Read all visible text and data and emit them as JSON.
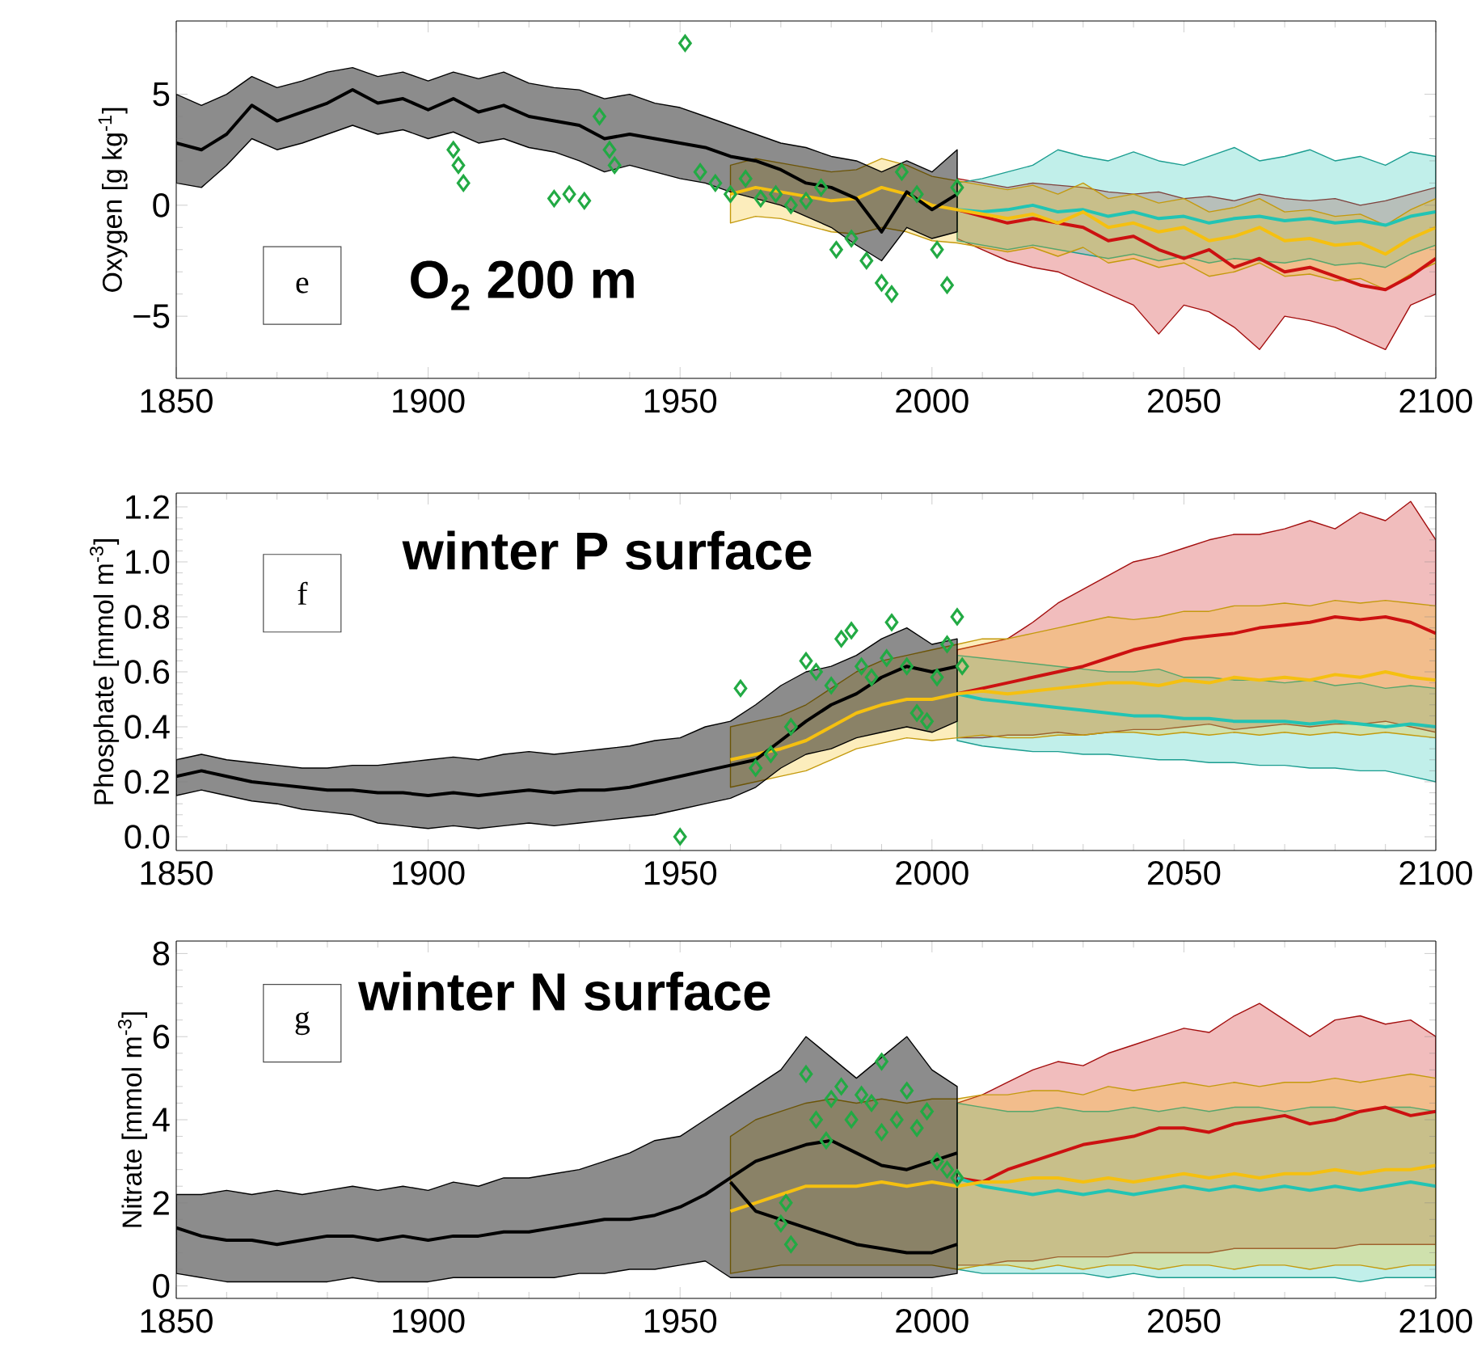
{
  "chart_data": [
    {
      "type": "line",
      "ylabel": "Oxygen [g kg$^{-1}$]",
      "annotations": [
        "e",
        "O$_{2}$ 200 m"
      ],
      "xlim": [
        1850,
        2100
      ],
      "xticks": [
        1850,
        1900,
        1950,
        2000,
        2050,
        2100
      ],
      "ylim": [
        -7.8,
        8.3
      ],
      "yticks": [
        {
          "value": -5,
          "label": "−5"
        },
        0,
        5
      ],
      "series": [
        {
          "color": "#cc1111",
          "x": [
            2005,
            2010,
            2015,
            2020,
            2025,
            2030,
            2035,
            2040,
            2045,
            2050,
            2055,
            2060,
            2065,
            2070,
            2075,
            2080,
            2085,
            2090,
            2095,
            2100
          ],
          "values": [
            -0.2,
            -0.5,
            -0.8,
            -0.6,
            -0.8,
            -1.0,
            -1.6,
            -1.4,
            -2.0,
            -2.4,
            -2.0,
            -2.8,
            -2.4,
            -3.0,
            -2.8,
            -3.2,
            -3.6,
            -3.8,
            -3.2,
            -2.4
          ],
          "lower": [
            -1.5,
            -2.0,
            -2.5,
            -2.8,
            -3.0,
            -3.5,
            -4.0,
            -4.5,
            -5.8,
            -4.5,
            -4.8,
            -5.5,
            -6.5,
            -5.0,
            -5.2,
            -5.5,
            -6.0,
            -6.5,
            -4.5,
            -4.0
          ],
          "upper": [
            1.2,
            1.0,
            0.8,
            1.0,
            0.9,
            0.8,
            0.6,
            0.5,
            0.6,
            0.3,
            0.4,
            0.2,
            0.5,
            0.3,
            0.2,
            0.3,
            0.0,
            0.2,
            0.5,
            0.8
          ]
        },
        {
          "color": "#22c4b4",
          "x": [
            2005,
            2010,
            2015,
            2020,
            2025,
            2030,
            2035,
            2040,
            2045,
            2050,
            2055,
            2060,
            2065,
            2070,
            2075,
            2080,
            2085,
            2090,
            2095,
            2100
          ],
          "values": [
            -0.2,
            -0.3,
            -0.2,
            0.0,
            -0.3,
            -0.2,
            -0.5,
            -0.3,
            -0.6,
            -0.5,
            -0.8,
            -0.6,
            -0.5,
            -0.7,
            -0.6,
            -0.8,
            -0.7,
            -0.9,
            -0.5,
            -0.3
          ],
          "lower": [
            -1.6,
            -1.8,
            -2.0,
            -1.8,
            -2.0,
            -2.2,
            -2.4,
            -2.2,
            -2.5,
            -2.3,
            -2.6,
            -2.4,
            -2.5,
            -2.6,
            -2.4,
            -2.7,
            -2.6,
            -2.8,
            -2.2,
            -1.8
          ],
          "upper": [
            1.0,
            1.2,
            1.5,
            1.8,
            2.5,
            2.2,
            2.0,
            2.4,
            2.0,
            1.8,
            2.2,
            2.6,
            2.0,
            2.2,
            2.5,
            2.0,
            2.2,
            1.8,
            2.4,
            2.2
          ]
        },
        {
          "color": "#f5c010",
          "x": [
            1960,
            1965,
            1970,
            1975,
            1980,
            1985,
            1990,
            1995,
            2000,
            2005,
            2010,
            2015,
            2020,
            2025,
            2030,
            2035,
            2040,
            2045,
            2050,
            2055,
            2060,
            2065,
            2070,
            2075,
            2080,
            2085,
            2090,
            2095,
            2100
          ],
          "values": [
            0.5,
            0.8,
            0.6,
            0.4,
            0.2,
            0.3,
            0.8,
            0.5,
            0.0,
            -0.2,
            -0.4,
            -0.6,
            -0.4,
            -0.8,
            -0.3,
            -1.0,
            -0.8,
            -1.2,
            -1.0,
            -1.6,
            -1.4,
            -1.0,
            -1.6,
            -1.5,
            -1.8,
            -1.7,
            -2.2,
            -1.5,
            -1.0
          ],
          "lower": [
            -0.8,
            -0.5,
            -0.6,
            -0.9,
            -1.2,
            -1.3,
            -1.0,
            -1.2,
            -1.6,
            -1.7,
            -1.9,
            -2.1,
            -1.9,
            -2.3,
            -1.9,
            -2.6,
            -2.4,
            -2.8,
            -2.6,
            -3.2,
            -3.0,
            -2.6,
            -3.2,
            -3.1,
            -3.4,
            -3.3,
            -3.8,
            -3.1,
            -2.6
          ],
          "upper": [
            1.8,
            2.1,
            1.9,
            1.7,
            1.5,
            1.6,
            2.1,
            1.8,
            1.3,
            1.1,
            0.9,
            0.7,
            0.9,
            0.5,
            1.0,
            0.3,
            0.5,
            0.1,
            0.3,
            -0.3,
            -0.1,
            0.3,
            -0.3,
            -0.2,
            -0.5,
            -0.4,
            -0.9,
            -0.2,
            0.3
          ]
        },
        {
          "color": "#000000",
          "x": [
            1850,
            1855,
            1860,
            1865,
            1870,
            1875,
            1880,
            1885,
            1890,
            1895,
            1900,
            1905,
            1910,
            1915,
            1920,
            1925,
            1930,
            1935,
            1940,
            1945,
            1950,
            1955,
            1960,
            1965,
            1970,
            1975,
            1980,
            1985,
            1990,
            1995,
            2000,
            2005
          ],
          "values": [
            2.8,
            2.5,
            3.2,
            4.5,
            3.8,
            4.2,
            4.6,
            5.2,
            4.6,
            4.8,
            4.3,
            4.8,
            4.2,
            4.5,
            4.0,
            3.8,
            3.6,
            3.0,
            3.2,
            3.0,
            2.8,
            2.6,
            2.2,
            2.0,
            1.6,
            1.0,
            0.8,
            0.3,
            -1.2,
            0.6,
            -0.2,
            0.5
          ],
          "lower": [
            1.0,
            0.8,
            1.8,
            3.0,
            2.5,
            2.8,
            3.2,
            3.6,
            3.2,
            3.4,
            3.0,
            3.3,
            2.8,
            3.0,
            2.6,
            2.4,
            2.0,
            1.5,
            1.8,
            1.5,
            1.2,
            1.0,
            0.6,
            0.3,
            0.0,
            -0.5,
            -1.0,
            -1.8,
            -2.5,
            -1.0,
            -1.5,
            -1.2
          ],
          "upper": [
            5.0,
            4.5,
            5.0,
            5.8,
            5.3,
            5.6,
            6.0,
            6.2,
            5.8,
            6.0,
            5.6,
            6.0,
            5.7,
            6.0,
            5.5,
            5.3,
            5.2,
            4.8,
            5.0,
            4.6,
            4.4,
            4.0,
            3.6,
            3.2,
            2.8,
            2.6,
            2.2,
            2.0,
            1.5,
            2.0,
            1.5,
            2.5
          ]
        },
        {
          "type": "scatter",
          "marker": "diamond",
          "color": "#22aa44",
          "x": [
            1905,
            1906,
            1907,
            1925,
            1928,
            1931,
            1934,
            1936,
            1937,
            1951,
            1954,
            1957,
            1960,
            1963,
            1966,
            1969,
            1972,
            1975,
            1978,
            1981,
            1984,
            1987,
            1990,
            1992,
            1994,
            1997,
            2001,
            2003,
            2005
          ],
          "values": [
            2.5,
            1.8,
            1.0,
            0.3,
            0.5,
            0.2,
            4.0,
            2.5,
            1.8,
            7.3,
            1.5,
            1.0,
            0.5,
            1.2,
            0.3,
            0.5,
            0.0,
            0.2,
            0.8,
            -2.0,
            -1.5,
            -2.5,
            -3.5,
            -4.0,
            1.5,
            0.5,
            -2.0,
            -3.6,
            0.8
          ]
        }
      ]
    },
    {
      "type": "line",
      "ylabel": "Phosphate [mmol m$^{-3}$]",
      "annotations": [
        "f",
        "winter P surface"
      ],
      "xlim": [
        1850,
        2100
      ],
      "xticks": [
        1850,
        1900,
        1950,
        2000,
        2050,
        2100
      ],
      "ylim": [
        -0.05,
        1.25
      ],
      "yticks": [
        {
          "value": 0,
          "label": "0.0"
        },
        0.2,
        0.4,
        0.6,
        0.8,
        {
          "value": 1,
          "label": "1.0"
        },
        1.2
      ],
      "series": [
        {
          "color": "#cc1111",
          "x": [
            2005,
            2010,
            2015,
            2020,
            2025,
            2030,
            2035,
            2040,
            2045,
            2050,
            2055,
            2060,
            2065,
            2070,
            2075,
            2080,
            2085,
            2090,
            2095,
            2100
          ],
          "values": [
            0.52,
            0.54,
            0.56,
            0.58,
            0.6,
            0.62,
            0.65,
            0.68,
            0.7,
            0.72,
            0.73,
            0.74,
            0.76,
            0.77,
            0.78,
            0.8,
            0.79,
            0.8,
            0.78,
            0.74
          ],
          "lower": [
            0.36,
            0.36,
            0.37,
            0.37,
            0.38,
            0.37,
            0.38,
            0.39,
            0.39,
            0.4,
            0.41,
            0.39,
            0.4,
            0.41,
            0.4,
            0.41,
            0.41,
            0.42,
            0.4,
            0.38
          ],
          "upper": [
            0.68,
            0.7,
            0.72,
            0.78,
            0.85,
            0.9,
            0.95,
            1.0,
            1.02,
            1.05,
            1.08,
            1.1,
            1.1,
            1.12,
            1.15,
            1.12,
            1.18,
            1.15,
            1.22,
            1.08
          ]
        },
        {
          "color": "#22c4b4",
          "x": [
            2005,
            2010,
            2015,
            2020,
            2025,
            2030,
            2035,
            2040,
            2045,
            2050,
            2055,
            2060,
            2065,
            2070,
            2075,
            2080,
            2085,
            2090,
            2095,
            2100
          ],
          "values": [
            0.52,
            0.5,
            0.49,
            0.48,
            0.47,
            0.46,
            0.45,
            0.44,
            0.44,
            0.43,
            0.43,
            0.42,
            0.42,
            0.42,
            0.41,
            0.42,
            0.41,
            0.4,
            0.41,
            0.4
          ],
          "lower": [
            0.35,
            0.33,
            0.32,
            0.31,
            0.31,
            0.3,
            0.3,
            0.29,
            0.28,
            0.28,
            0.27,
            0.27,
            0.26,
            0.26,
            0.25,
            0.25,
            0.24,
            0.24,
            0.22,
            0.2
          ],
          "upper": [
            0.66,
            0.65,
            0.64,
            0.63,
            0.62,
            0.61,
            0.6,
            0.6,
            0.61,
            0.58,
            0.58,
            0.57,
            0.57,
            0.56,
            0.57,
            0.55,
            0.56,
            0.54,
            0.55,
            0.54
          ]
        },
        {
          "color": "#f5c010",
          "x": [
            1960,
            1965,
            1970,
            1975,
            1980,
            1985,
            1990,
            1995,
            2000,
            2005,
            2010,
            2015,
            2020,
            2025,
            2030,
            2035,
            2040,
            2045,
            2050,
            2055,
            2060,
            2065,
            2070,
            2075,
            2080,
            2085,
            2090,
            2095,
            2100
          ],
          "values": [
            0.28,
            0.3,
            0.32,
            0.35,
            0.4,
            0.45,
            0.48,
            0.5,
            0.5,
            0.52,
            0.53,
            0.52,
            0.53,
            0.54,
            0.55,
            0.56,
            0.56,
            0.55,
            0.57,
            0.56,
            0.58,
            0.57,
            0.58,
            0.57,
            0.59,
            0.58,
            0.6,
            0.58,
            0.57
          ],
          "lower": [
            0.18,
            0.2,
            0.22,
            0.24,
            0.28,
            0.32,
            0.34,
            0.36,
            0.35,
            0.36,
            0.37,
            0.36,
            0.36,
            0.37,
            0.37,
            0.38,
            0.38,
            0.37,
            0.38,
            0.37,
            0.38,
            0.37,
            0.38,
            0.37,
            0.38,
            0.37,
            0.38,
            0.37,
            0.36
          ],
          "upper": [
            0.4,
            0.42,
            0.44,
            0.48,
            0.54,
            0.6,
            0.64,
            0.66,
            0.68,
            0.7,
            0.72,
            0.72,
            0.74,
            0.76,
            0.78,
            0.8,
            0.79,
            0.8,
            0.82,
            0.82,
            0.84,
            0.84,
            0.85,
            0.84,
            0.86,
            0.85,
            0.86,
            0.85,
            0.84
          ]
        },
        {
          "color": "#000000",
          "x": [
            1850,
            1855,
            1860,
            1865,
            1870,
            1875,
            1880,
            1885,
            1890,
            1895,
            1900,
            1905,
            1910,
            1915,
            1920,
            1925,
            1930,
            1935,
            1940,
            1945,
            1950,
            1955,
            1960,
            1965,
            1970,
            1975,
            1980,
            1985,
            1990,
            1995,
            2000,
            2005
          ],
          "values": [
            0.22,
            0.24,
            0.22,
            0.2,
            0.19,
            0.18,
            0.17,
            0.17,
            0.16,
            0.16,
            0.15,
            0.16,
            0.15,
            0.16,
            0.17,
            0.16,
            0.17,
            0.17,
            0.18,
            0.2,
            0.22,
            0.24,
            0.26,
            0.28,
            0.35,
            0.42,
            0.48,
            0.52,
            0.58,
            0.62,
            0.6,
            0.62
          ],
          "lower": [
            0.15,
            0.17,
            0.15,
            0.13,
            0.12,
            0.1,
            0.09,
            0.08,
            0.05,
            0.04,
            0.03,
            0.04,
            0.03,
            0.04,
            0.05,
            0.04,
            0.05,
            0.06,
            0.07,
            0.08,
            0.1,
            0.12,
            0.14,
            0.18,
            0.25,
            0.3,
            0.32,
            0.36,
            0.38,
            0.4,
            0.38,
            0.42
          ],
          "upper": [
            0.28,
            0.3,
            0.28,
            0.27,
            0.26,
            0.25,
            0.25,
            0.26,
            0.26,
            0.27,
            0.28,
            0.29,
            0.28,
            0.3,
            0.31,
            0.3,
            0.31,
            0.32,
            0.33,
            0.35,
            0.36,
            0.4,
            0.42,
            0.48,
            0.55,
            0.6,
            0.62,
            0.66,
            0.72,
            0.76,
            0.7,
            0.72
          ]
        },
        {
          "type": "scatter",
          "marker": "diamond",
          "color": "#22aa44",
          "x": [
            1950,
            1962,
            1965,
            1968,
            1972,
            1975,
            1977,
            1980,
            1982,
            1984,
            1986,
            1988,
            1991,
            1992,
            1995,
            1997,
            1999,
            2001,
            2003,
            2005,
            2006
          ],
          "values": [
            0.0,
            0.54,
            0.25,
            0.3,
            0.4,
            0.64,
            0.6,
            0.55,
            0.72,
            0.75,
            0.62,
            0.58,
            0.65,
            0.78,
            0.62,
            0.45,
            0.42,
            0.58,
            0.7,
            0.8,
            0.62
          ]
        }
      ]
    },
    {
      "type": "line",
      "ylabel": "Nitrate [mmol m$^{-3}$]",
      "annotations": [
        "g",
        "winter N surface"
      ],
      "xlim": [
        1850,
        2100
      ],
      "xticks": [
        1850,
        1900,
        1950,
        2000,
        2050,
        2100
      ],
      "ylim": [
        -0.3,
        8.3
      ],
      "yticks": [
        0,
        2,
        4,
        6,
        8
      ],
      "series": [
        {
          "color": "#cc1111",
          "x": [
            2005,
            2010,
            2015,
            2020,
            2025,
            2030,
            2035,
            2040,
            2045,
            2050,
            2055,
            2060,
            2065,
            2070,
            2075,
            2080,
            2085,
            2090,
            2095,
            2100
          ],
          "values": [
            2.6,
            2.5,
            2.8,
            3.0,
            3.2,
            3.4,
            3.5,
            3.6,
            3.8,
            3.8,
            3.7,
            3.9,
            4.0,
            4.1,
            3.9,
            4.0,
            4.2,
            4.3,
            4.1,
            4.2
          ],
          "lower": [
            0.5,
            0.5,
            0.6,
            0.6,
            0.7,
            0.7,
            0.7,
            0.8,
            0.8,
            0.8,
            0.8,
            0.9,
            0.9,
            0.9,
            0.9,
            0.9,
            1.0,
            1.0,
            1.0,
            1.0
          ],
          "upper": [
            4.4,
            4.6,
            4.9,
            5.2,
            5.4,
            5.3,
            5.6,
            5.8,
            6.0,
            6.2,
            6.1,
            6.5,
            6.8,
            6.4,
            6.0,
            6.4,
            6.5,
            6.3,
            6.4,
            6.0
          ]
        },
        {
          "color": "#22c4b4",
          "x": [
            2005,
            2010,
            2015,
            2020,
            2025,
            2030,
            2035,
            2040,
            2045,
            2050,
            2055,
            2060,
            2065,
            2070,
            2075,
            2080,
            2085,
            2090,
            2095,
            2100
          ],
          "values": [
            2.6,
            2.4,
            2.3,
            2.2,
            2.3,
            2.2,
            2.3,
            2.2,
            2.3,
            2.4,
            2.3,
            2.4,
            2.3,
            2.4,
            2.3,
            2.4,
            2.3,
            2.4,
            2.5,
            2.4
          ],
          "lower": [
            0.4,
            0.3,
            0.3,
            0.3,
            0.3,
            0.3,
            0.2,
            0.3,
            0.2,
            0.2,
            0.2,
            0.2,
            0.2,
            0.2,
            0.2,
            0.2,
            0.1,
            0.2,
            0.2,
            0.2
          ],
          "upper": [
            4.4,
            4.3,
            4.2,
            4.2,
            4.3,
            4.2,
            4.2,
            4.3,
            4.2,
            4.3,
            4.2,
            4.3,
            4.3,
            4.2,
            4.3,
            4.3,
            4.2,
            4.3,
            4.3,
            4.2
          ]
        },
        {
          "color": "#f5c010",
          "x": [
            1960,
            1965,
            1970,
            1975,
            1980,
            1985,
            1990,
            1995,
            2000,
            2005,
            2010,
            2015,
            2020,
            2025,
            2030,
            2035,
            2040,
            2045,
            2050,
            2055,
            2060,
            2065,
            2070,
            2075,
            2080,
            2085,
            2090,
            2095,
            2100
          ],
          "values": [
            1.8,
            2.0,
            2.2,
            2.4,
            2.4,
            2.4,
            2.5,
            2.4,
            2.5,
            2.4,
            2.5,
            2.5,
            2.6,
            2.6,
            2.5,
            2.6,
            2.5,
            2.6,
            2.7,
            2.6,
            2.7,
            2.6,
            2.7,
            2.7,
            2.8,
            2.7,
            2.8,
            2.8,
            2.9
          ],
          "lower": [
            0.3,
            0.4,
            0.5,
            0.5,
            0.5,
            0.5,
            0.5,
            0.5,
            0.5,
            0.4,
            0.5,
            0.5,
            0.4,
            0.5,
            0.4,
            0.5,
            0.5,
            0.4,
            0.5,
            0.5,
            0.4,
            0.5,
            0.5,
            0.4,
            0.5,
            0.5,
            0.4,
            0.5,
            0.5
          ],
          "upper": [
            3.6,
            4.0,
            4.2,
            4.4,
            4.5,
            4.4,
            4.5,
            4.4,
            4.5,
            4.5,
            4.6,
            4.6,
            4.7,
            4.7,
            4.6,
            4.8,
            4.7,
            4.8,
            4.9,
            4.8,
            4.9,
            4.8,
            4.9,
            4.9,
            5.0,
            4.9,
            5.0,
            5.1,
            5.0
          ]
        },
        {
          "color": "#000000",
          "x": [
            1850,
            1855,
            1860,
            1865,
            1870,
            1875,
            1880,
            1885,
            1890,
            1895,
            1900,
            1905,
            1910,
            1915,
            1920,
            1925,
            1930,
            1935,
            1940,
            1945,
            1950,
            1955,
            1960,
            1965,
            1970,
            1975,
            1980,
            1985,
            1990,
            1995,
            2000,
            2005
          ],
          "values": [
            1.4,
            1.2,
            1.1,
            1.1,
            1.0,
            1.1,
            1.2,
            1.2,
            1.1,
            1.2,
            1.1,
            1.2,
            1.2,
            1.3,
            1.3,
            1.4,
            1.5,
            1.6,
            1.6,
            1.7,
            1.9,
            2.2,
            2.6,
            3.0,
            3.2,
            3.4,
            3.5,
            3.2,
            2.9,
            2.8,
            3.0,
            3.2
          ],
          "lower": [
            0.3,
            0.2,
            0.1,
            0.1,
            0.1,
            0.1,
            0.1,
            0.2,
            0.1,
            0.1,
            0.1,
            0.2,
            0.2,
            0.2,
            0.2,
            0.2,
            0.3,
            0.3,
            0.4,
            0.4,
            0.5,
            0.6,
            0.2,
            0.2,
            0.2,
            0.2,
            0.2,
            0.2,
            0.2,
            0.2,
            0.2,
            0.3
          ],
          "upper": [
            2.2,
            2.2,
            2.3,
            2.2,
            2.3,
            2.2,
            2.3,
            2.4,
            2.3,
            2.4,
            2.3,
            2.5,
            2.4,
            2.6,
            2.6,
            2.7,
            2.8,
            3.0,
            3.2,
            3.5,
            3.6,
            4.0,
            4.4,
            4.8,
            5.2,
            6.0,
            5.5,
            5.0,
            5.5,
            6.0,
            5.2,
            4.8
          ]
        },
        {
          "color": "#000000",
          "x": [
            1960,
            1965,
            1970,
            1975,
            1980,
            1985,
            1990,
            1995,
            2000,
            2005
          ],
          "values": [
            2.5,
            1.8,
            1.6,
            1.4,
            1.2,
            1.0,
            0.9,
            0.8,
            0.8,
            1.0
          ]
        },
        {
          "type": "scatter",
          "marker": "diamond",
          "color": "#22aa44",
          "x": [
            1970,
            1971,
            1972,
            1975,
            1977,
            1979,
            1980,
            1982,
            1984,
            1986,
            1988,
            1990,
            1990,
            1993,
            1995,
            1997,
            1999,
            2001,
            2003,
            2005
          ],
          "values": [
            1.5,
            2.0,
            1.0,
            5.1,
            4.0,
            3.5,
            4.5,
            4.8,
            4.0,
            4.6,
            4.4,
            5.4,
            3.7,
            4.0,
            4.7,
            3.8,
            4.2,
            3.0,
            2.8,
            2.6
          ]
        }
      ]
    }
  ]
}
